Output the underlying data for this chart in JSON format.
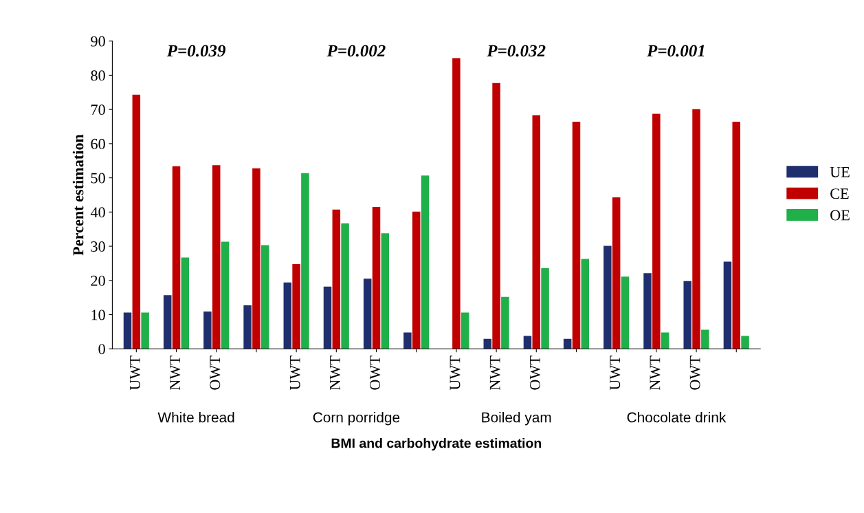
{
  "chart_data": {
    "type": "bar",
    "xlabel": "BMI and carbohydrate estimation",
    "ylabel": "Percent estimation",
    "categories": [
      "UWT",
      "NWT",
      "OWT",
      null,
      "UWT",
      "NWT",
      "OWT",
      null,
      "UWT",
      "NWT",
      "OWT",
      null,
      "UWT",
      "NWT",
      "OWT",
      null
    ],
    "series": [
      {
        "name": "UE",
        "color": "#1f2f6e",
        "values": [
          10.6,
          15.7,
          10.9,
          12.7,
          19.4,
          18.2,
          20.5,
          4.8,
          0,
          2.9,
          3.8,
          2.9,
          30.1,
          22.1,
          19.8,
          25.5
        ]
      },
      {
        "name": "CE",
        "color": "#c00000",
        "values": [
          74.3,
          53.4,
          53.7,
          52.8,
          24.8,
          40.7,
          41.5,
          40.1,
          85.0,
          77.7,
          68.3,
          66.4,
          44.3,
          68.7,
          70.1,
          66.4
        ]
      },
      {
        "name": "OE",
        "color": "#1fb04a",
        "values": [
          10.6,
          26.7,
          31.3,
          30.3,
          51.4,
          36.7,
          33.8,
          50.7,
          10.6,
          15.2,
          23.6,
          26.3,
          21.1,
          4.8,
          5.6,
          3.8
        ]
      }
    ],
    "annotations": [
      "P=0.039",
      "P=0.002",
      "P=0.032",
      "P=0.001",
      "White bread",
      "Corn porridge",
      "Boiled yam",
      "Chocolate drink"
    ],
    "ylim": [
      0,
      90
    ],
    "yticks": [
      0,
      10,
      20,
      30,
      40,
      50,
      60,
      70,
      80,
      90
    ],
    "grid": false,
    "legend": "right"
  }
}
